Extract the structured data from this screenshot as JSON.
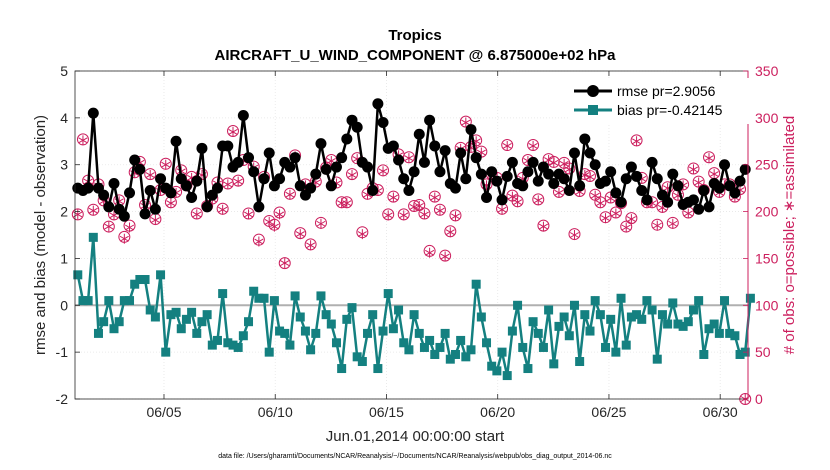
{
  "chart_data": {
    "type": "line",
    "title": "Tropics",
    "subtitle": "AIRCRAFT_U_WIND_COMPONENT @ 6.875000e+02 hPa",
    "xlabel": "Jun.01,2014 00:00:00 start",
    "ylabel_left": "rmse and bias (model - observation)",
    "ylabel_right": "# of obs: o=possible; ∗=assimilated",
    "footnote": "data file: /Users/gharamti/Documents/NCAR/Reanalysis/~/Documents/NCAR/Reanalysis/webpub/obs_diag_output_2014-06.nc",
    "xlim": [
      1,
      31.25
    ],
    "ylim_left": [
      -2,
      5
    ],
    "ylim_right": [
      0,
      350
    ],
    "x_ticks": [
      5,
      10,
      15,
      20,
      25,
      30
    ],
    "x_tick_labels": [
      "06/05",
      "06/10",
      "06/15",
      "06/20",
      "06/25",
      "06/30"
    ],
    "y_ticks_left": [
      -2,
      -1,
      0,
      1,
      2,
      3,
      4,
      5
    ],
    "y_tick_labels_left": [
      "-2",
      "-1",
      "0",
      "1",
      "2",
      "3",
      "4",
      "5"
    ],
    "y_ticks_right": [
      0,
      50,
      100,
      150,
      200,
      250,
      300,
      350
    ],
    "y_tick_labels_right": [
      "0",
      "50",
      "100",
      "150",
      "200",
      "250",
      "300",
      "350"
    ],
    "grid": true,
    "legend_position": "top-right",
    "colors": {
      "rmse": "#000000",
      "bias": "#148080",
      "obs": "#cc1f5e",
      "zero_line": "#b0b0b0"
    },
    "series": [
      {
        "name": "rmse pr=2.9056",
        "axis": "left",
        "marker": "circle",
        "values": [
          2.5,
          2.45,
          2.5,
          4.1,
          2.5,
          2.35,
          2.1,
          2.6,
          2.05,
          1.9,
          2.4,
          3.1,
          2.9,
          1.95,
          2.45,
          2.05,
          2.7,
          2.5,
          2.4,
          3.5,
          2.7,
          2.55,
          2.3,
          2.65,
          3.35,
          2.1,
          2.35,
          2.5,
          3.4,
          3.4,
          2.95,
          3.05,
          4.05,
          3.15,
          2.85,
          2.1,
          2.7,
          3.25,
          2.55,
          2.7,
          3.05,
          2.95,
          3.15,
          2.55,
          2.35,
          2.5,
          2.8,
          3.45,
          2.9,
          2.55,
          2.95,
          3.15,
          3.55,
          3.95,
          3.8,
          3.05,
          2.95,
          2.45,
          4.3,
          3.9,
          3.35,
          3.4,
          3.1,
          2.7,
          2.45,
          2.85,
          3.65,
          3.05,
          3.95,
          3.4,
          2.85,
          3.3,
          2.6,
          2.5,
          3.25,
          2.7,
          3.75,
          3.15,
          2.8,
          2.3,
          2.85,
          2.65,
          2.25,
          2.75,
          3.05,
          2.6,
          2.55,
          2.85,
          3.05,
          2.65,
          2.95,
          2.8,
          2.6,
          2.8,
          2.7,
          2.45,
          3.25,
          2.55,
          3.55,
          3.25,
          3.0,
          2.6,
          2.65,
          2.85,
          2.4,
          2.2,
          2.7,
          2.95,
          2.75,
          2.45,
          2.25,
          3.05,
          2.7,
          2.35,
          2.2,
          2.8,
          2.55,
          2.15,
          2.2,
          2.25,
          2.05,
          2.45,
          2.1,
          2.6,
          2.5,
          3.0,
          2.55,
          2.4,
          2.65,
          2.9
        ]
      },
      {
        "name": "bias pr=-0.42145",
        "axis": "left",
        "marker": "square",
        "values": [
          0.65,
          0.1,
          0.1,
          1.45,
          -0.6,
          -0.35,
          0.1,
          -0.5,
          -0.35,
          0.1,
          0.1,
          0.45,
          0.55,
          0.55,
          -0.1,
          -0.25,
          0.65,
          -1.0,
          -0.2,
          -0.15,
          -0.5,
          -0.3,
          -0.15,
          -0.6,
          -0.35,
          -0.2,
          -0.85,
          -0.75,
          0.25,
          -0.8,
          -0.85,
          -0.9,
          -0.65,
          -0.35,
          0.3,
          0.15,
          0.15,
          -1.0,
          0.1,
          -0.55,
          -0.6,
          -0.85,
          0.2,
          -0.25,
          -0.55,
          -0.95,
          -0.6,
          0.2,
          -0.2,
          -0.4,
          -0.8,
          -1.35,
          -0.3,
          -0.05,
          -1.1,
          -1.2,
          -0.6,
          -0.2,
          -1.35,
          -0.55,
          0.25,
          -0.5,
          -0.1,
          -0.8,
          -0.95,
          -0.2,
          -0.6,
          -0.9,
          -0.75,
          -1.05,
          -0.9,
          -0.6,
          -1.15,
          -1.05,
          -0.75,
          -1.1,
          -0.95,
          0.45,
          -0.25,
          -0.8,
          -1.3,
          -1.4,
          -1.0,
          -1.5,
          -0.55,
          0.0,
          -0.9,
          -1.35,
          -0.35,
          -0.6,
          -0.9,
          -0.1,
          -1.25,
          -0.45,
          -0.25,
          -0.65,
          0.0,
          -1.2,
          -0.2,
          -0.55,
          0.1,
          -0.2,
          -0.9,
          -0.3,
          -1.0,
          0.15,
          -0.85,
          -0.25,
          -0.2,
          -0.3,
          0.1,
          -0.1,
          -1.15,
          -0.2,
          -0.4,
          0.05,
          -0.4,
          -0.45,
          -0.35,
          -0.1,
          0.1,
          -1.05,
          -0.5,
          -0.4,
          -0.6,
          0.1,
          -0.6,
          -0.65,
          -1.05,
          -1.0,
          0.15
        ]
      },
      {
        "name": "possible",
        "axis": "right",
        "marker": "circle-open",
        "values": [
          197,
          277,
          233,
          202,
          229,
          212,
          184,
          197,
          212,
          173,
          185,
          242,
          253,
          207,
          240,
          192,
          223,
          251,
          210,
          221,
          244,
          228,
          237,
          198,
          240,
          206,
          214,
          231,
          203,
          230,
          286,
          233,
          255,
          198,
          248,
          170,
          237,
          190,
          186,
          199,
          145,
          219,
          260,
          177,
          229,
          165,
          232,
          188,
          247,
          255,
          231,
          210,
          210,
          240,
          257,
          178,
          219,
          225,
          223,
          244,
          197,
          216,
          261,
          197,
          258,
          206,
          207,
          198,
          158,
          216,
          202,
          153,
          179,
          196,
          268,
          296,
          269,
          276,
          264,
          229,
          240,
          236,
          203,
          271,
          217,
          211,
          236,
          255,
          271,
          213,
          185,
          256,
          253,
          221,
          252,
          246,
          176,
          222,
          240,
          238,
          218,
          210,
          194,
          215,
          199,
          209,
          184,
          193,
          276,
          236,
          210,
          210,
          186,
          205,
          226,
          188,
          218,
          229,
          199,
          246,
          232,
          223,
          258,
          241,
          221,
          229,
          229,
          216,
          224,
          0
        ]
      },
      {
        "name": "assimilated",
        "axis": "right",
        "marker": "asterisk",
        "values": [
          197,
          276,
          232,
          201,
          228,
          211,
          184,
          196,
          211,
          171,
          183,
          241,
          252,
          206,
          239,
          191,
          222,
          250,
          209,
          220,
          243,
          227,
          236,
          197,
          239,
          205,
          213,
          230,
          202,
          229,
          285,
          232,
          254,
          197,
          247,
          168,
          236,
          189,
          184,
          197,
          145,
          218,
          259,
          176,
          228,
          164,
          231,
          187,
          246,
          254,
          230,
          209,
          209,
          239,
          256,
          176,
          218,
          224,
          222,
          243,
          196,
          215,
          260,
          196,
          257,
          205,
          206,
          197,
          156,
          215,
          201,
          152,
          178,
          195,
          267,
          295,
          268,
          275,
          263,
          228,
          239,
          235,
          202,
          270,
          216,
          210,
          235,
          254,
          270,
          212,
          184,
          255,
          252,
          220,
          251,
          245,
          175,
          221,
          239,
          237,
          217,
          209,
          193,
          214,
          198,
          208,
          183,
          192,
          275,
          235,
          209,
          209,
          185,
          204,
          225,
          187,
          217,
          228,
          198,
          245,
          231,
          222,
          257,
          240,
          220,
          228,
          228,
          215,
          223,
          0
        ]
      }
    ]
  }
}
